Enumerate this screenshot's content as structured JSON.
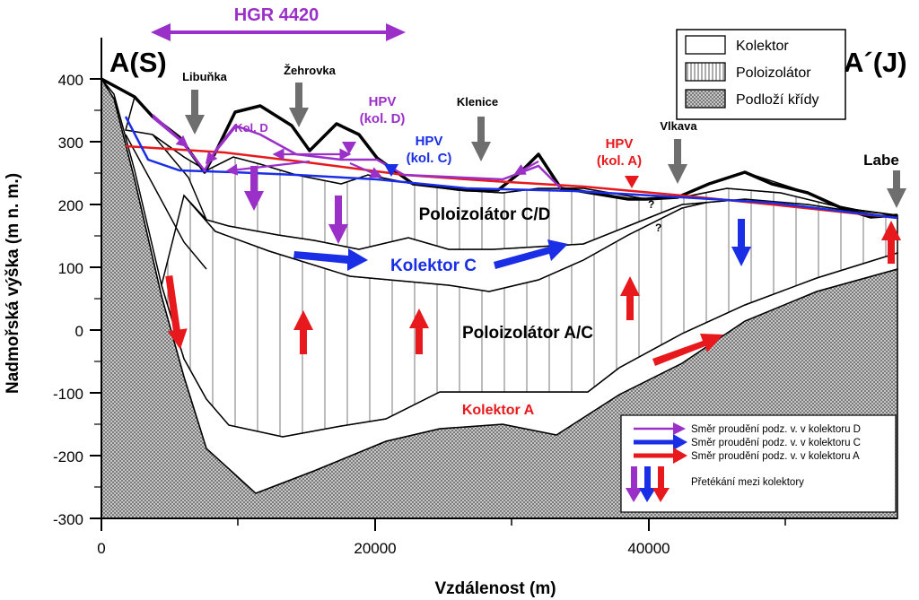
{
  "section": {
    "start_label": "A(S)",
    "end_label": "A´(J)",
    "hgr_label": "HGR 4420"
  },
  "axes": {
    "ylabel": "Nadmořská výška (m n. m.)",
    "xlabel": "Vzdálenost (m)",
    "y_ticks": [
      "400",
      "300",
      "200",
      "100",
      "0",
      "-100",
      "-200",
      "-300"
    ],
    "x_ticks": [
      "0",
      "20000",
      "40000"
    ]
  },
  "places": {
    "libunka": "Libuňka",
    "zehrovka": "Žehrovka",
    "klenice": "Klenice",
    "vlkava": "Vlkava",
    "labe": "Labe"
  },
  "water_levels": {
    "hpv_d_line1": "HPV",
    "hpv_d_line2": "(kol. D)",
    "hpv_c_line1": "HPV",
    "hpv_c_line2": "(kol. C)",
    "hpv_a_line1": "HPV",
    "hpv_a_line2": "(kol. A)"
  },
  "units": {
    "kol_d": "Kol. D",
    "poloizolator_cd": "Poloizolátor C/D",
    "kolektor_c": "Kolektor C",
    "poloizolator_ac": "Poloizolátor A/C",
    "kolektor_a": "Kolektor A",
    "question1": "?",
    "question2": "?"
  },
  "legend_units": {
    "kolektor": "Kolektor",
    "poloizolator": "Poloizolátor",
    "podlozi": "Podloží křídy"
  },
  "legend_arrows": {
    "flow_d": "Směr proudění podz. v. v kolektoru D",
    "flow_c": "Směr proudění podz. v. v kolektoru C",
    "flow_a": "Směr proudění podz. v. v kolektoru A",
    "leakage": "Přetékání mezi kolektory"
  },
  "colors": {
    "kolektor_d": "#9b30c8",
    "kolektor_c": "#1a2ee6",
    "kolektor_a": "#e8191c",
    "place_arrow": "#6e6e6e"
  }
}
